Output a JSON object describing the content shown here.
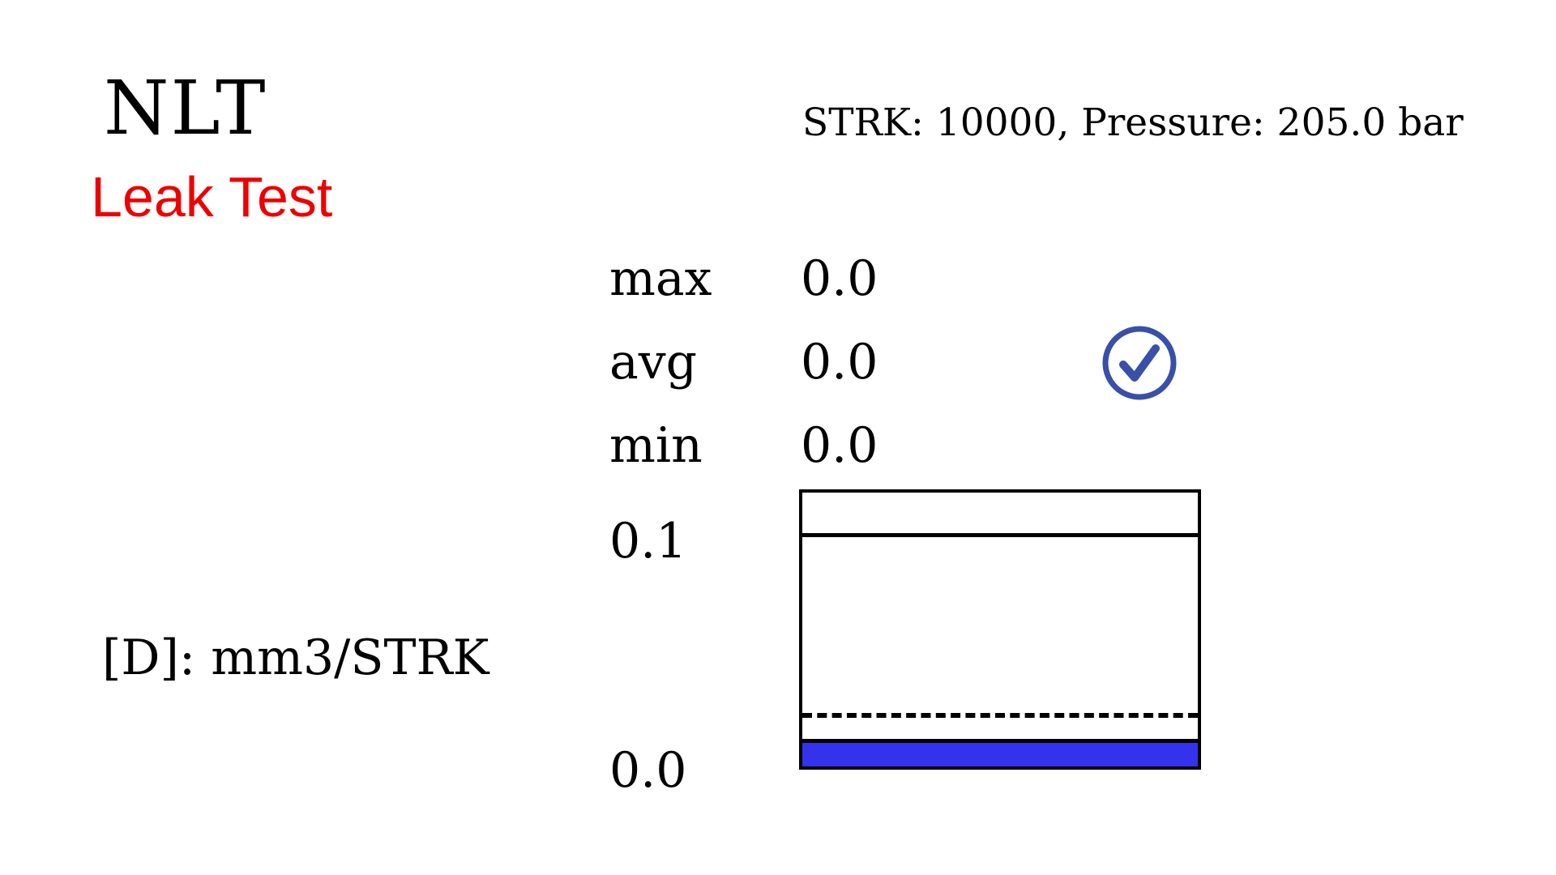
{
  "header": {
    "title": "NLT",
    "subtitle": "Leak Test",
    "subtitle_color": "#ee0000",
    "status": "STRK: 10000, Pressure: 205.0 bar"
  },
  "stats": [
    {
      "label": "max",
      "value": "0.0"
    },
    {
      "label": "avg",
      "value": "0.0"
    },
    {
      "label": "min",
      "value": "0.0"
    }
  ],
  "result": {
    "icon": "check-circle-icon",
    "color": "#3a4fa8"
  },
  "gauge": {
    "scale_max_label": "0.1",
    "scale_min_label": "0.0",
    "range": [
      0.0,
      0.118
    ],
    "limit_value": 0.1,
    "reference_value": 0.022,
    "current_value": 0.012,
    "fill_color": "#3333ee",
    "unit_label": "[D]: mm3/STRK"
  }
}
